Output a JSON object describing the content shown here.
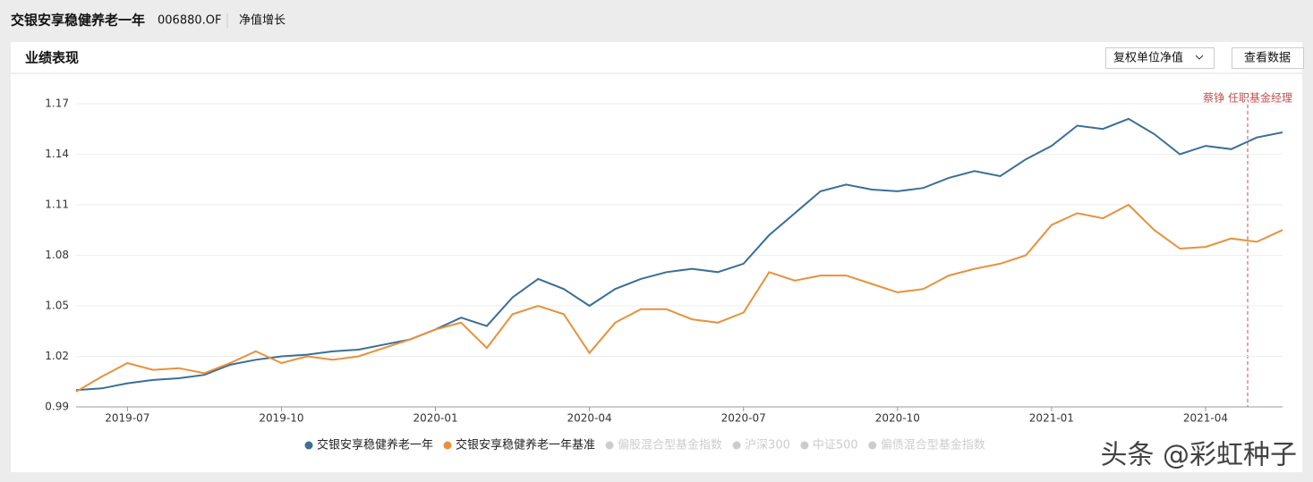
{
  "header": {
    "fund_name": "交银安享稳健养老一年",
    "fund_code": "006880.OF",
    "tab": "净值增长"
  },
  "panel": {
    "title": "业绩表现",
    "dropdown": "复权单位净值",
    "button": "查看数据"
  },
  "chart_data": {
    "type": "line",
    "categories": [
      null,
      null,
      "2019-07",
      null,
      null,
      null,
      null,
      null,
      "2019-10",
      null,
      null,
      null,
      null,
      null,
      "2020-01",
      null,
      null,
      null,
      null,
      null,
      "2020-04",
      null,
      null,
      null,
      null,
      null,
      "2020-07",
      null,
      null,
      null,
      null,
      null,
      "2020-10",
      null,
      null,
      null,
      null,
      null,
      "2021-01",
      null,
      null,
      null,
      null,
      null,
      "2021-04",
      null,
      null,
      null
    ],
    "series": [
      {
        "name": "交银安享稳健养老一年",
        "color": "#3a6f96",
        "values": [
          1.0,
          1.001,
          1.004,
          1.006,
          1.007,
          1.009,
          1.015,
          1.018,
          1.02,
          1.021,
          1.023,
          1.024,
          1.027,
          1.03,
          1.036,
          1.043,
          1.038,
          1.055,
          1.066,
          1.06,
          1.05,
          1.06,
          1.066,
          1.07,
          1.072,
          1.07,
          1.075,
          1.092,
          1.105,
          1.118,
          1.122,
          1.119,
          1.118,
          1.12,
          1.126,
          1.13,
          1.127,
          1.137,
          1.145,
          1.157,
          1.155,
          1.161,
          1.152,
          1.14,
          1.145,
          1.143,
          1.15,
          1.153
        ]
      },
      {
        "name": "交银安享稳健养老一年基准",
        "color": "#e8913a",
        "values": [
          0.999,
          1.008,
          1.016,
          1.012,
          1.013,
          1.01,
          1.016,
          1.023,
          1.016,
          1.02,
          1.018,
          1.02,
          1.025,
          1.03,
          1.036,
          1.04,
          1.025,
          1.045,
          1.05,
          1.045,
          1.022,
          1.04,
          1.048,
          1.048,
          1.042,
          1.04,
          1.046,
          1.07,
          1.065,
          1.068,
          1.068,
          1.063,
          1.058,
          1.06,
          1.068,
          1.072,
          1.075,
          1.08,
          1.098,
          1.105,
          1.102,
          1.11,
          1.095,
          1.084,
          1.085,
          1.09,
          1.088,
          1.095
        ]
      }
    ],
    "inactive_series": [
      "偏股混合型基金指数",
      "沪深300",
      "中证500",
      "偏债混合型基金指数"
    ],
    "inactive_color": "#cccccc",
    "ylim": [
      0.99,
      1.17
    ],
    "yticks": [
      0.99,
      1.02,
      1.05,
      1.08,
      1.11,
      1.14,
      1.17
    ],
    "grid": true,
    "annotation": "蔡铮 任职基金经理",
    "annotation_color": "#c0504d"
  },
  "watermark": "头条 @彩虹种子"
}
